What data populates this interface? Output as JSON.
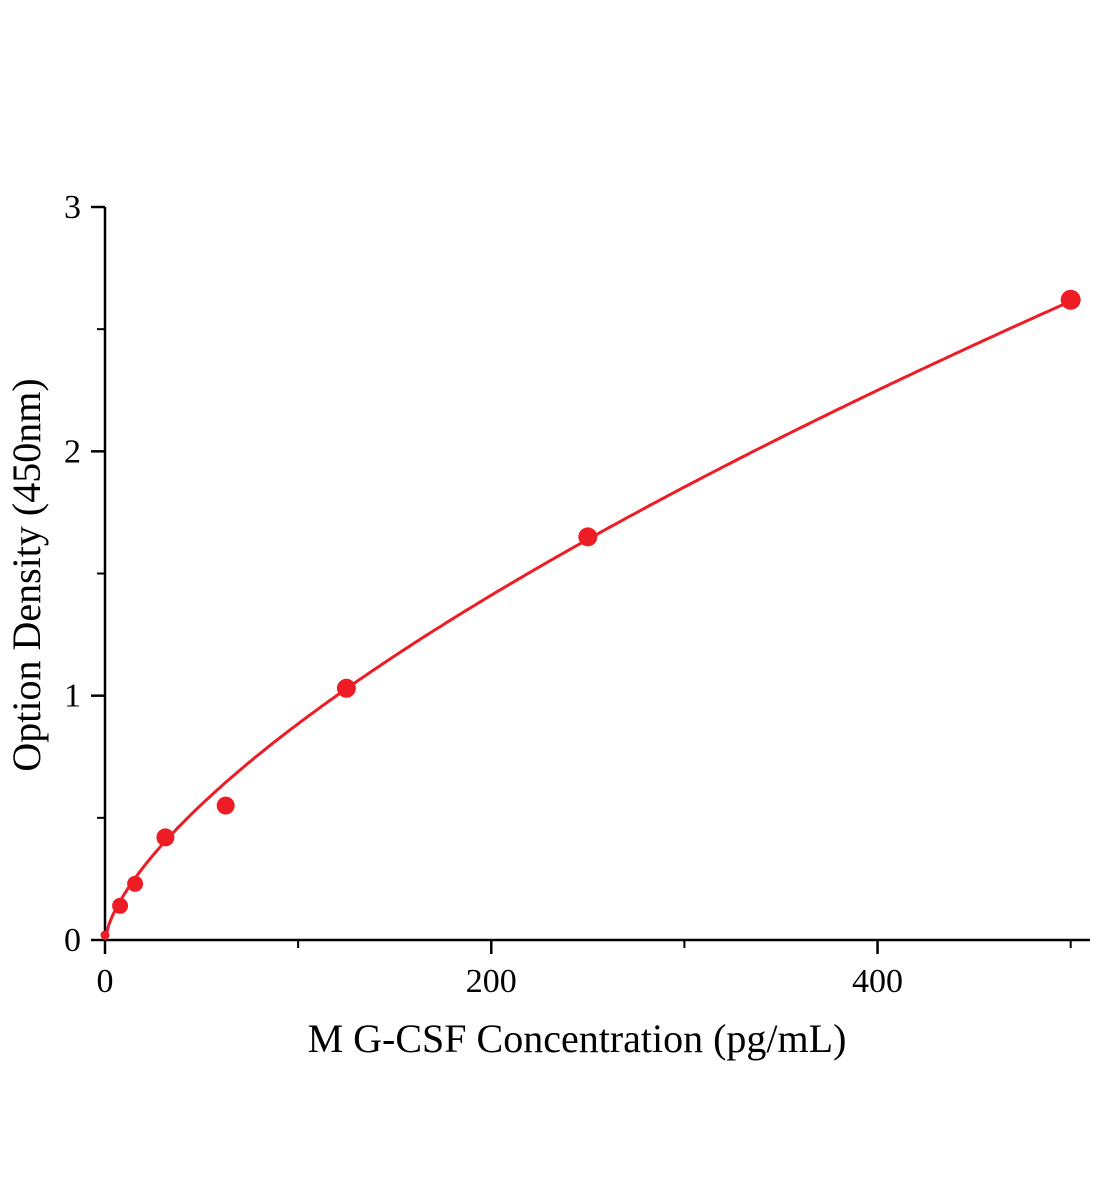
{
  "chart_data": {
    "type": "scatter",
    "title": "",
    "xlabel": "M G-CSF Concentration (pg/mL)",
    "ylabel": "Option Density (450nm)",
    "x": [
      0,
      7.8,
      15.6,
      31.25,
      62.5,
      125,
      250,
      500
    ],
    "y": [
      0.02,
      0.14,
      0.23,
      0.42,
      0.55,
      1.03,
      1.65,
      2.62
    ],
    "marker_radii": [
      4.5,
      8,
      8,
      9,
      9,
      9.5,
      9.5,
      10
    ],
    "xlim": [
      0,
      510
    ],
    "ylim": [
      0,
      3
    ],
    "x_major_ticks": [
      0,
      200,
      400
    ],
    "x_minor_ticks": [
      100,
      300,
      500
    ],
    "y_major_ticks": [
      0,
      1,
      2,
      3
    ],
    "y_minor_ticks": [
      0.5,
      1.5,
      2.5
    ],
    "grid": false,
    "legend_position": "none",
    "accent_color": "#ee1c25",
    "axis_color": "#000000",
    "fit": {
      "type": "power",
      "a": 0.0399,
      "b": 0.673
    }
  }
}
